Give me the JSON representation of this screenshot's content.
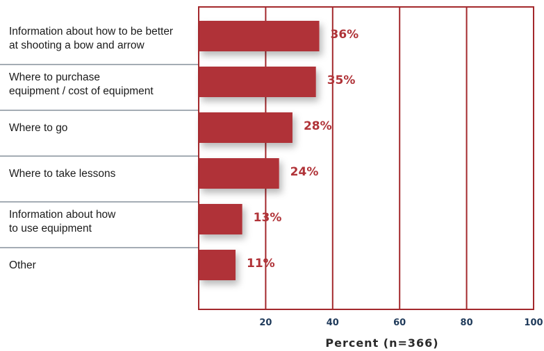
{
  "chart_data": {
    "type": "bar",
    "orientation": "horizontal",
    "categories": [
      [
        "Information about how to be better",
        "at shooting a bow and arrow"
      ],
      [
        "Where to purchase",
        "equipment / cost of equipment"
      ],
      [
        "Where to go"
      ],
      [
        "Where to take lessons"
      ],
      [
        "Information about how",
        "to use equipment"
      ],
      [
        "Other"
      ]
    ],
    "values": [
      36,
      35,
      28,
      24,
      13,
      11
    ],
    "value_labels": [
      "36%",
      "35%",
      "28%",
      "24%",
      "13%",
      "11%"
    ],
    "xlabel": "Percent (n=366)",
    "xlim": [
      0,
      100
    ],
    "xticks": [
      20,
      40,
      60,
      80,
      100
    ],
    "grid": true,
    "colors": {
      "bar": "#b03338",
      "frame": "#a3282c",
      "label": "#b03338",
      "tick": "#1f3a5a"
    }
  }
}
